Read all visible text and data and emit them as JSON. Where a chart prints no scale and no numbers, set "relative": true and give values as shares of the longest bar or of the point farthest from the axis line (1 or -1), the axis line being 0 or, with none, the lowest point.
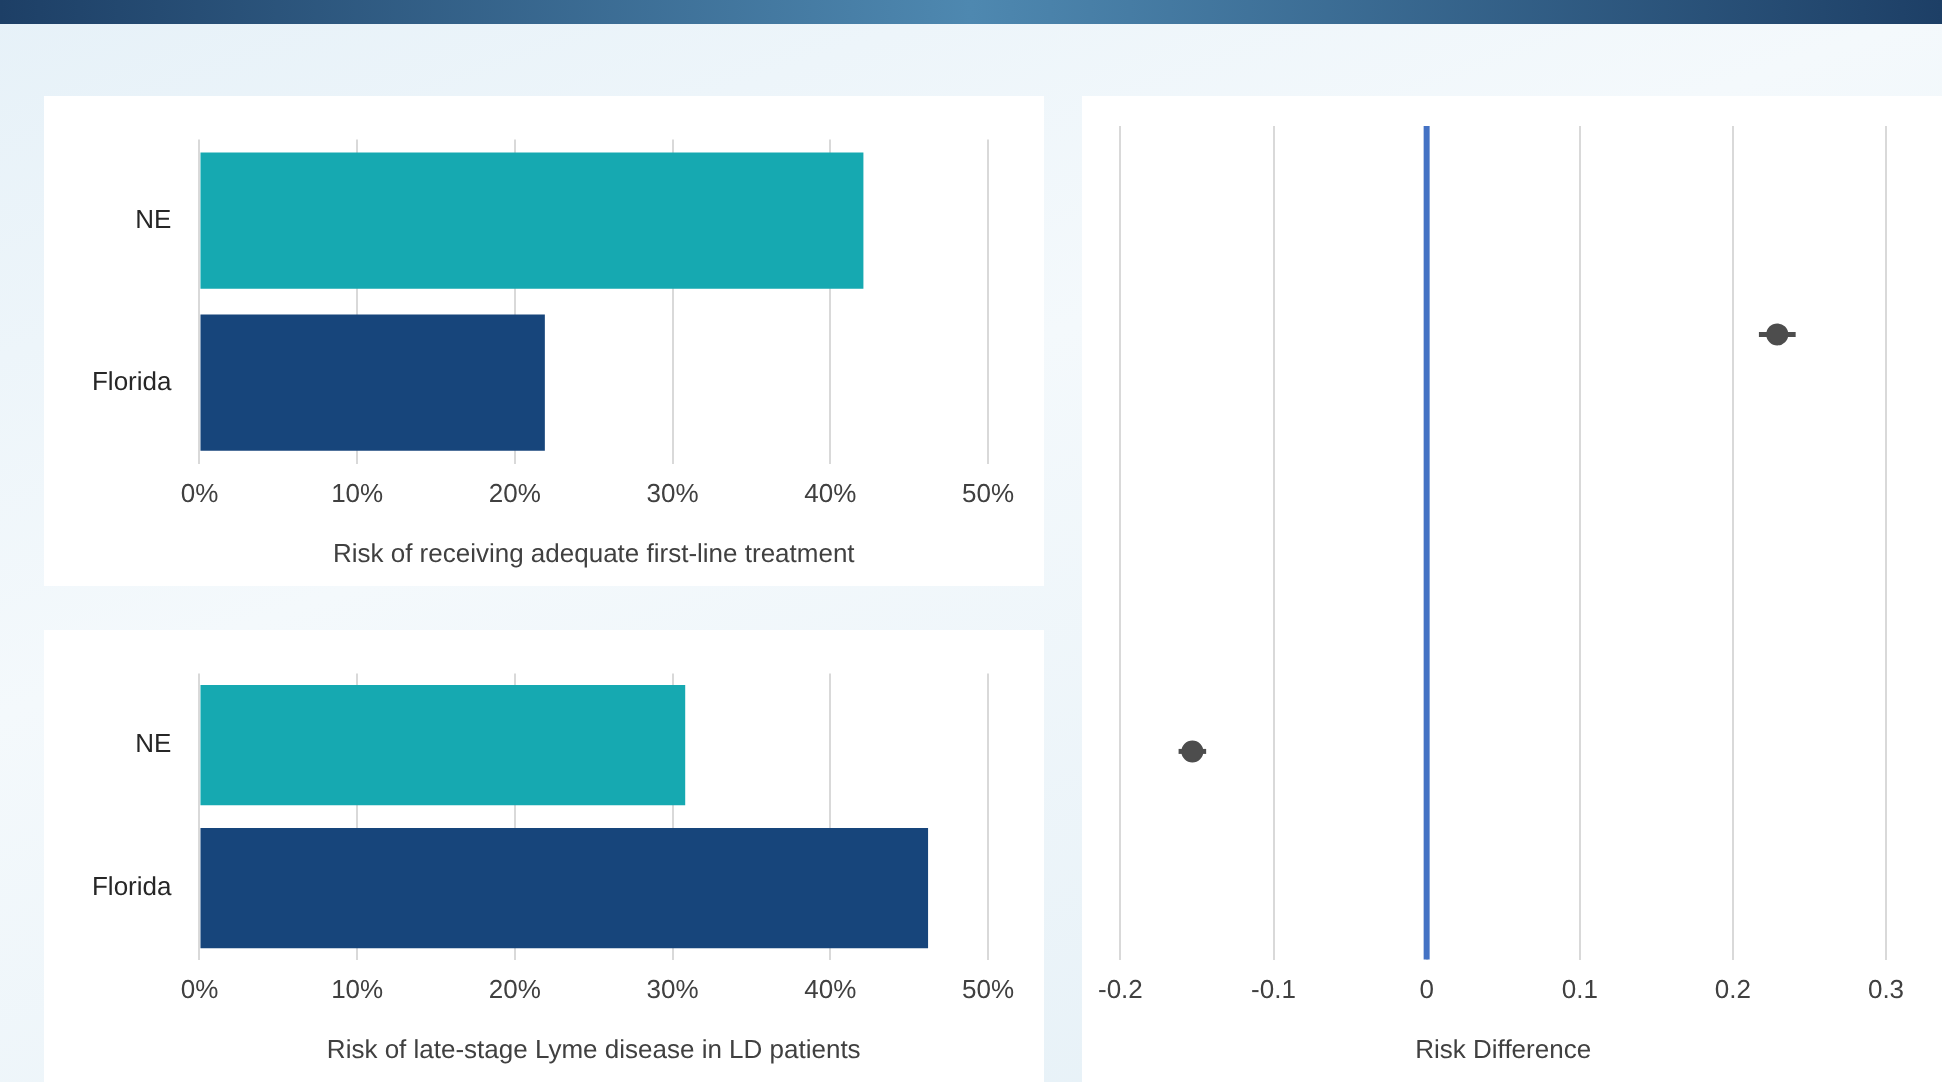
{
  "chart_data": [
    {
      "type": "bar",
      "orientation": "horizontal",
      "categories": [
        "NE",
        "Florida"
      ],
      "values": [
        42.1,
        21.9
      ],
      "colors": [
        "#16a9b1",
        "#17457b"
      ],
      "xlim": [
        0,
        50
      ],
      "xticks": [
        {
          "value": 0,
          "label": "0%"
        },
        {
          "value": 10,
          "label": "10%"
        },
        {
          "value": 20,
          "label": "20%"
        },
        {
          "value": 30,
          "label": "30%"
        },
        {
          "value": 40,
          "label": "40%"
        },
        {
          "value": 50,
          "label": "50%"
        }
      ],
      "xlabel": "Risk of receiving adequate first-line treatment",
      "grid": "x",
      "legend": false
    },
    {
      "type": "bar",
      "orientation": "horizontal",
      "categories": [
        "NE",
        "Florida"
      ],
      "values": [
        30.8,
        46.2
      ],
      "colors": [
        "#16a9b1",
        "#17457b"
      ],
      "xlim": [
        0,
        50
      ],
      "xticks": [
        {
          "value": 0,
          "label": "0%"
        },
        {
          "value": 10,
          "label": "10%"
        },
        {
          "value": 20,
          "label": "20%"
        },
        {
          "value": 30,
          "label": "30%"
        },
        {
          "value": 40,
          "label": "40%"
        },
        {
          "value": 50,
          "label": "50%"
        }
      ],
      "xlabel": "Risk of late-stage Lyme disease in LD patients",
      "grid": "x",
      "legend": false
    },
    {
      "type": "scatter",
      "relative": true,
      "x": [
        0.229,
        -0.153
      ],
      "values": [
        1,
        0.333
      ],
      "xerrors": [
        0.012,
        0.009
      ],
      "color": "#4d4d4d",
      "marker": "circle",
      "xlim": [
        -0.2,
        0.3
      ],
      "xticks": [
        -0.2,
        -0.1,
        0,
        0.1,
        0.2,
        0.3
      ],
      "xlabel": "Risk Difference",
      "grid": "x",
      "tick_labels": "x",
      "legend": false,
      "ref_lines": [
        {
          "axis": "x",
          "value": 0,
          "color": "#4472c4"
        }
      ]
    }
  ]
}
